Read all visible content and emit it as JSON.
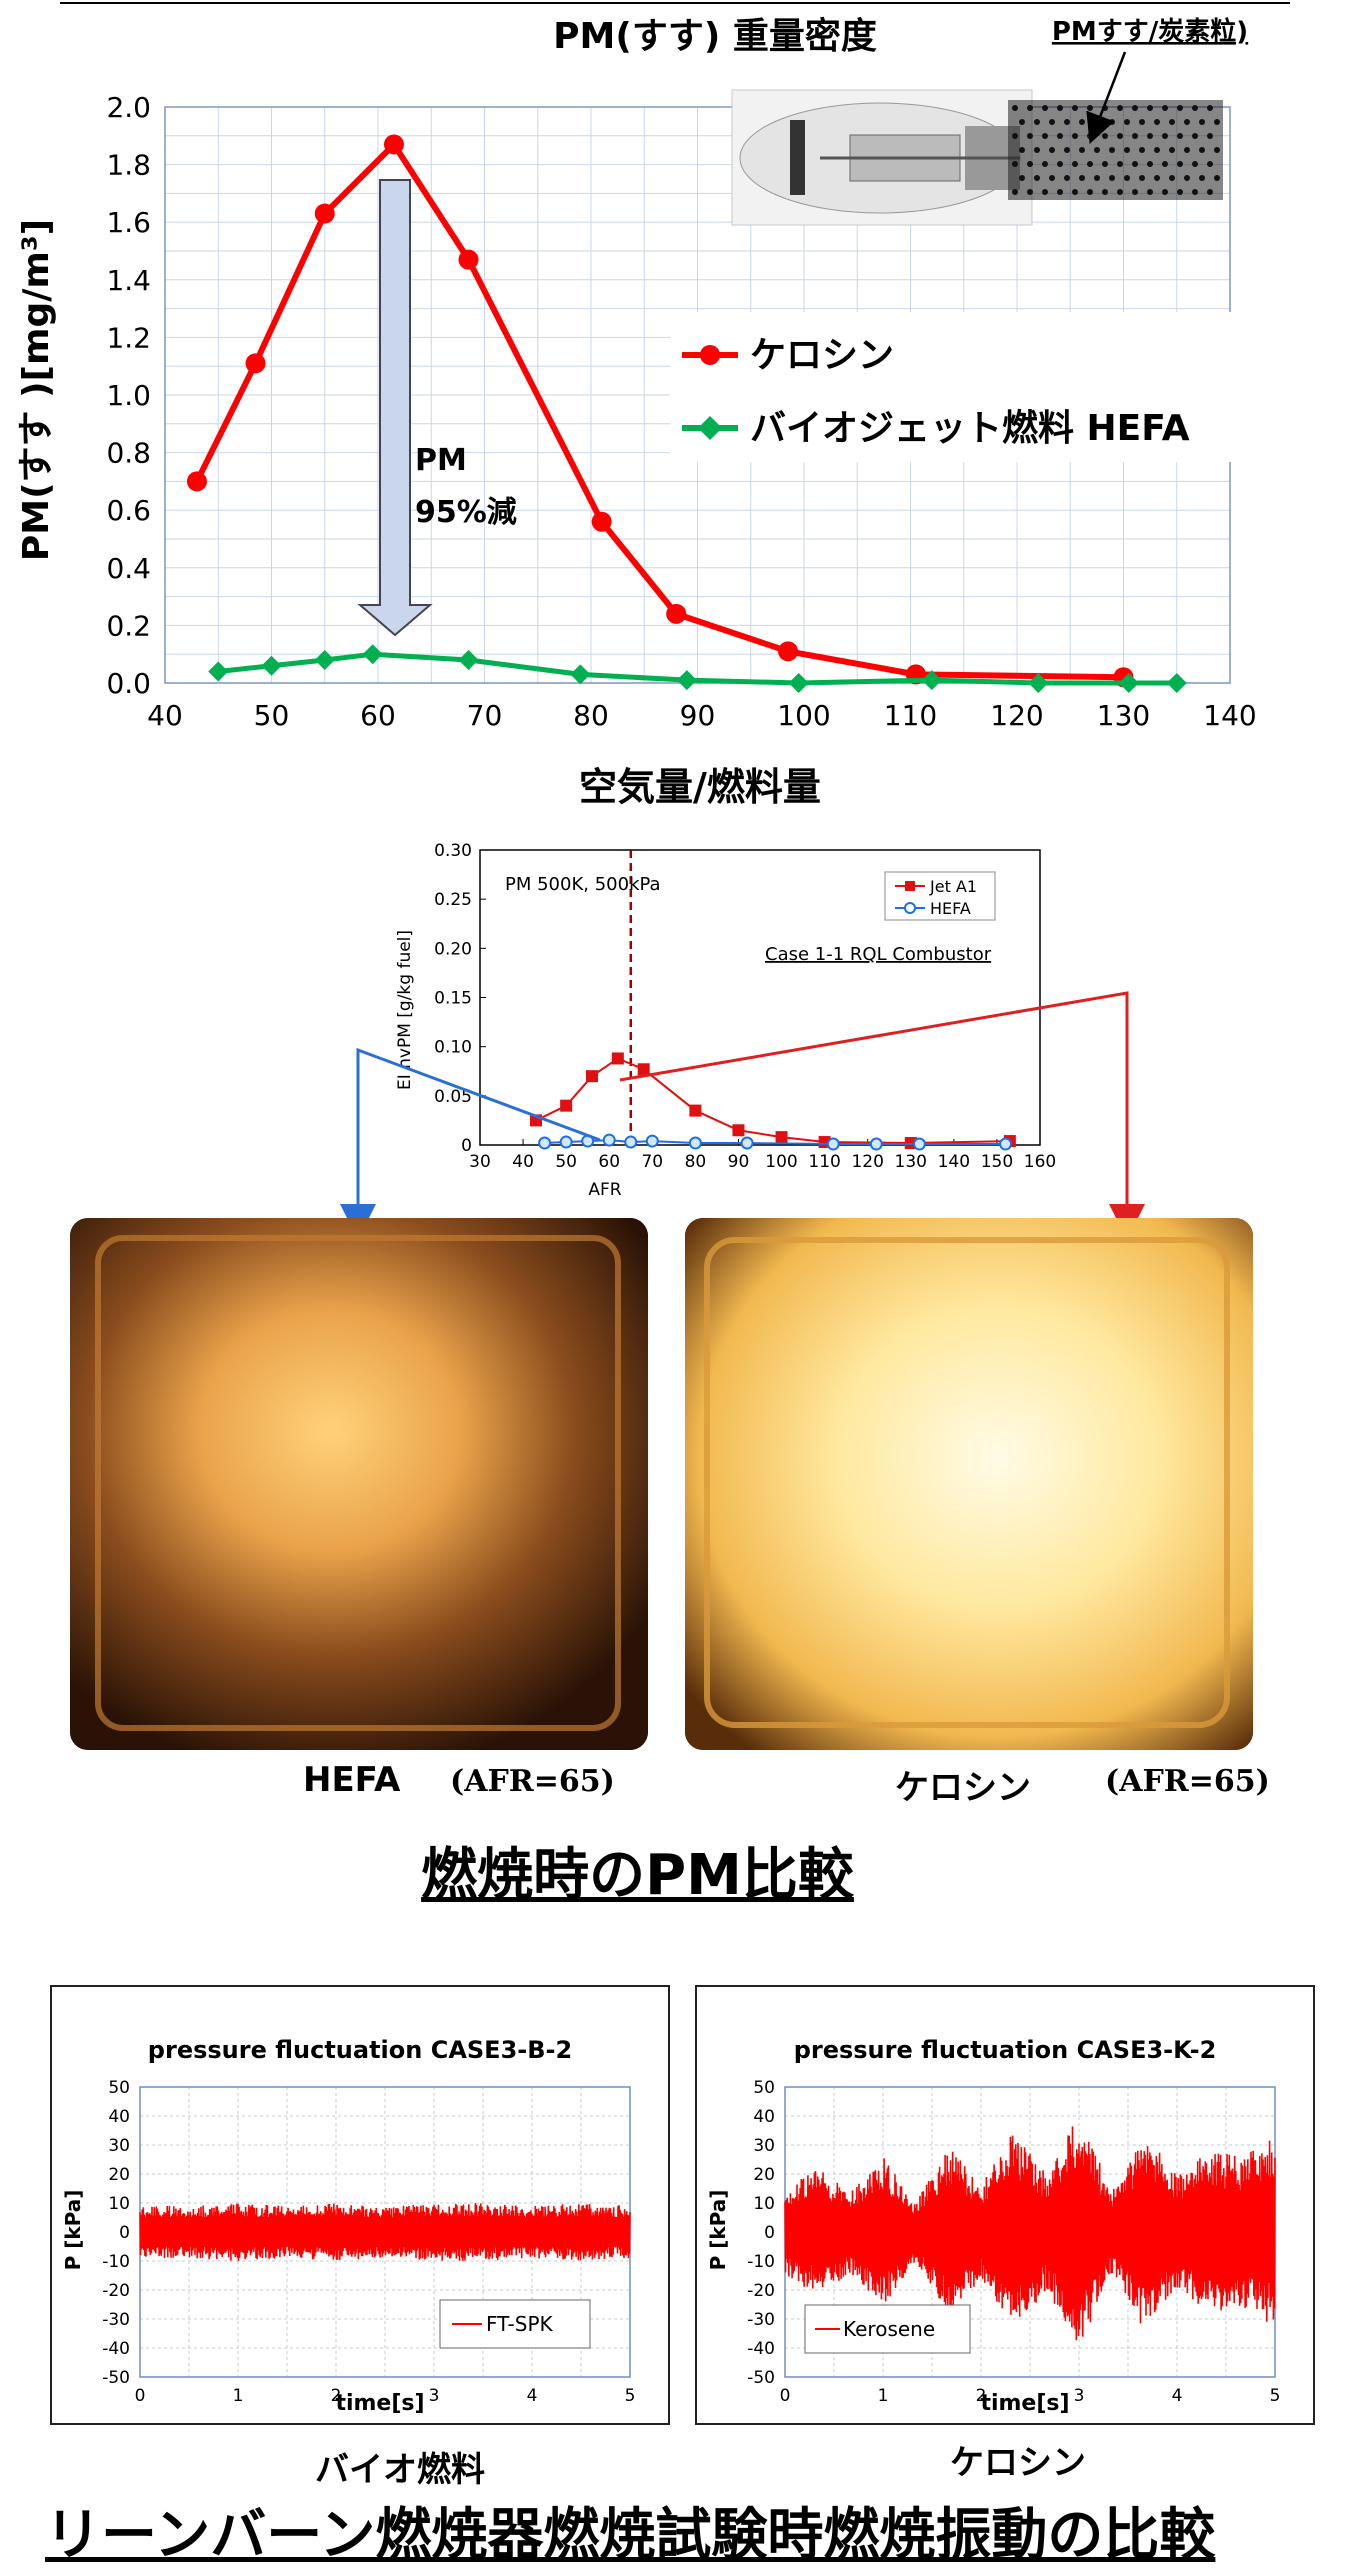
{
  "chart_data": [
    {
      "type": "line",
      "title": "PM(すす) 重量密度",
      "xlabel": "空気量/燃料量",
      "ylabel": "PM(すす )[mg/m³]",
      "xlim": [
        40,
        140
      ],
      "ylim": [
        0,
        2.0
      ],
      "x_ticks": [
        "40",
        "50",
        "60",
        "70",
        "80",
        "90",
        "100",
        "110",
        "120",
        "130",
        "140"
      ],
      "y_ticks": [
        "0.0",
        "0.2",
        "0.4",
        "0.6",
        "0.8",
        "1.0",
        "1.2",
        "1.4",
        "1.6",
        "1.8",
        "2.0"
      ],
      "grid": true,
      "legend_position": "right",
      "series": [
        {
          "name": "ケロシン",
          "color": "#ff0000",
          "marker": "circle",
          "x": [
            43,
            48.5,
            55,
            61.5,
            68.5,
            81,
            88,
            98.5,
            110.5,
            130
          ],
          "y": [
            0.7,
            1.11,
            1.63,
            1.87,
            1.47,
            0.56,
            0.24,
            0.11,
            0.03,
            0.02
          ]
        },
        {
          "name": "バイオジェット燃料 HEFA",
          "color": "#00b050",
          "marker": "diamond",
          "x": [
            45,
            50,
            55,
            59.5,
            68.5,
            79,
            89,
            99.5,
            112,
            122,
            130.5,
            135
          ],
          "y": [
            0.04,
            0.06,
            0.08,
            0.1,
            0.08,
            0.03,
            0.01,
            0.0,
            0.01,
            0.0,
            0.0,
            0.0
          ]
        }
      ],
      "annotations": {
        "arrow_label_1": "PM",
        "arrow_label_2": "95%減",
        "inset_label": "PMすす/炭素粒)"
      }
    },
    {
      "type": "line",
      "title": "",
      "xlabel": "AFR",
      "ylabel": "EI nvPM [g/kg fuel]",
      "xlim": [
        30,
        160
      ],
      "ylim": [
        0,
        0.3
      ],
      "x_ticks": [
        "30",
        "40",
        "50",
        "60",
        "70",
        "80",
        "90",
        "100",
        "110",
        "120",
        "130",
        "140",
        "150",
        "160"
      ],
      "y_ticks": [
        "0",
        "0.05",
        "0.10",
        "0.15",
        "0.20",
        "0.25",
        "0.30"
      ],
      "grid": false,
      "legend_position": "top-right",
      "annotations": {
        "condition": "PM 500K, 500kPa",
        "case": "Case 1-1 RQL Combustor"
      },
      "marker_line_x": 65,
      "series": [
        {
          "name": "Jet A1",
          "color": "#e01010",
          "marker": "square",
          "x": [
            43,
            50,
            56,
            62,
            68,
            80,
            90,
            100,
            110,
            130,
            153
          ],
          "y": [
            0.025,
            0.04,
            0.07,
            0.088,
            0.077,
            0.035,
            0.015,
            0.008,
            0.003,
            0.002,
            0.004
          ]
        },
        {
          "name": "HEFA",
          "color": "#1f6fe0",
          "marker": "circle",
          "x": [
            45,
            50,
            55,
            60,
            65,
            70,
            80,
            92,
            112,
            122,
            132,
            152
          ],
          "y": [
            0.002,
            0.003,
            0.004,
            0.005,
            0.003,
            0.004,
            0.002,
            0.002,
            0.001,
            0.001,
            0.001,
            0.001
          ]
        }
      ]
    },
    {
      "type": "line",
      "title": "pressure fluctuation CASE3-B-2",
      "xlabel": "time[s]",
      "ylabel": "P [kPa]",
      "xlim": [
        0,
        5
      ],
      "ylim": [
        -50,
        50
      ],
      "x_ticks": [
        "0",
        "1",
        "2",
        "3",
        "4",
        "5"
      ],
      "y_ticks": [
        "50",
        "40",
        "30",
        "20",
        "10",
        "0",
        "-10",
        "-20",
        "-30",
        "-40",
        "-50"
      ],
      "grid": true,
      "legend_position": "bottom-right",
      "series": [
        {
          "name": "FT-SPK",
          "color": "#ff0000",
          "amplitude_kPa": [
            9,
            9,
            10,
            9,
            10,
            9,
            10,
            10,
            9,
            10,
            9
          ]
        }
      ]
    },
    {
      "type": "line",
      "title": "pressure fluctuation CASE3-K-2",
      "xlabel": "time[s]",
      "ylabel": "P [kPa]",
      "xlim": [
        0,
        5
      ],
      "ylim": [
        -50,
        50
      ],
      "x_ticks": [
        "0",
        "1",
        "2",
        "3",
        "4",
        "5"
      ],
      "y_ticks": [
        "50",
        "40",
        "30",
        "20",
        "10",
        "0",
        "-10",
        "-20",
        "-30",
        "-40",
        "-50"
      ],
      "grid": true,
      "legend_position": "bottom-left",
      "series": [
        {
          "name": "Kerosene",
          "color": "#ff0000",
          "amplitude_kPa": [
            15,
            22,
            14,
            26,
            10,
            30,
            16,
            35,
            20,
            41,
            14,
            34,
            20,
            28,
            26,
            33
          ]
        }
      ]
    }
  ],
  "photos": {
    "left_label": "HEFA",
    "left_afr": "(AFR=65)",
    "right_label": "ケロシン",
    "right_afr": "(AFR=65)"
  },
  "headings": {
    "pm_compare": "燃焼時のPM比較",
    "bottom": "リーンバーン燃焼器燃焼試験時燃焼振動の比較"
  },
  "captions": {
    "bio": "バイオ燃料",
    "kero": "ケロシン"
  }
}
